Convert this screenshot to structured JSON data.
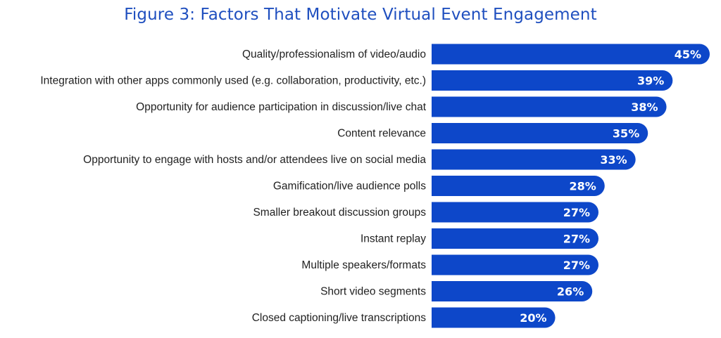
{
  "chart_data": {
    "type": "bar",
    "orientation": "horizontal",
    "title": "Figure 3: Factors That Motivate Virtual Event Engagement",
    "categories": [
      "Quality/professionalism of video/audio",
      "Integration with other apps commonly used (e.g. collaboration, productivity, etc.)",
      "Opportunity for audience participation in discussion/live chat",
      "Content relevance",
      "Opportunity to engage with hosts and/or attendees live on social media",
      "Gamification/live audience polls",
      "Smaller breakout discussion groups",
      "Instant replay",
      "Multiple speakers/formats",
      "Short video segments",
      "Closed captioning/live transcriptions"
    ],
    "values": [
      45,
      39,
      38,
      35,
      33,
      28,
      27,
      27,
      27,
      26,
      20
    ],
    "value_labels": [
      "45%",
      "39%",
      "38%",
      "35%",
      "33%",
      "28%",
      "27%",
      "27%",
      "27%",
      "26%",
      "20%"
    ],
    "unit": "%",
    "xlim": [
      0,
      45
    ],
    "grid": false,
    "bar_color": "#0d47c9",
    "title_color": "#1f4fbf"
  }
}
